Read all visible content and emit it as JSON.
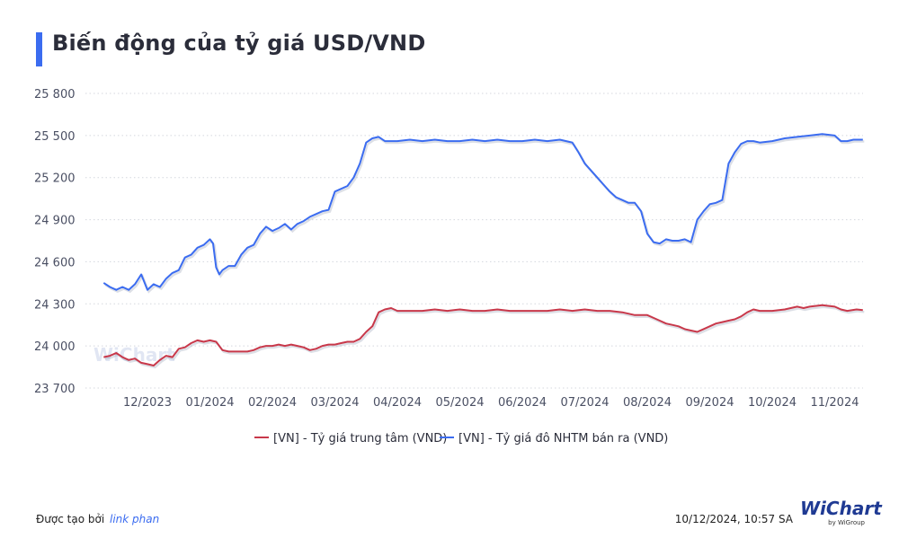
{
  "title": "Biến động của tỷ giá USD/VND",
  "footer": {
    "created_by": "Được tạo bởi",
    "author_link": "link phan",
    "timestamp": "10/12/2024, 10:57 SA",
    "brand": "WiChart",
    "brand_sub": "by WiGroup",
    "watermark": "WiChart"
  },
  "colors": {
    "accent": "#3b6cf0",
    "central": "#c8384a",
    "bank": "#3b6cf0"
  },
  "chart_data": {
    "type": "line",
    "title": "Biến động của tỷ giá USD/VND",
    "xlabel": "",
    "ylabel": "",
    "ylim": [
      23700,
      25800
    ],
    "yticks": [
      23700,
      24000,
      24300,
      24600,
      24900,
      25200,
      25500,
      25800
    ],
    "ytick_labels": [
      "23 700",
      "24 000",
      "24 300",
      "24 600",
      "24 900",
      "25 200",
      "25 500",
      "25 800"
    ],
    "x_categories": [
      "12/2023",
      "01/2024",
      "02/2024",
      "03/2024",
      "04/2024",
      "05/2024",
      "06/2024",
      "07/2024",
      "08/2024",
      "09/2024",
      "10/2024",
      "11/2024"
    ],
    "grid": "horizontal dotted",
    "legend_position": "bottom-center",
    "series": [
      {
        "name": "[VN] - Tỷ giá trung tâm (VND)",
        "color": "#c8384a",
        "points": [
          [
            -0.7,
            23920
          ],
          [
            -0.6,
            23930
          ],
          [
            -0.5,
            23950
          ],
          [
            -0.4,
            23920
          ],
          [
            -0.3,
            23900
          ],
          [
            -0.2,
            23910
          ],
          [
            -0.1,
            23880
          ],
          [
            0.0,
            23870
          ],
          [
            0.1,
            23860
          ],
          [
            0.2,
            23900
          ],
          [
            0.3,
            23930
          ],
          [
            0.4,
            23920
          ],
          [
            0.5,
            23980
          ],
          [
            0.6,
            23990
          ],
          [
            0.7,
            24020
          ],
          [
            0.8,
            24040
          ],
          [
            0.9,
            24030
          ],
          [
            1.0,
            24040
          ],
          [
            1.1,
            24030
          ],
          [
            1.2,
            23970
          ],
          [
            1.3,
            23960
          ],
          [
            1.4,
            23960
          ],
          [
            1.5,
            23960
          ],
          [
            1.6,
            23960
          ],
          [
            1.7,
            23970
          ],
          [
            1.8,
            23990
          ],
          [
            1.9,
            24000
          ],
          [
            2.0,
            24000
          ],
          [
            2.1,
            24010
          ],
          [
            2.2,
            24000
          ],
          [
            2.3,
            24010
          ],
          [
            2.4,
            24000
          ],
          [
            2.5,
            23990
          ],
          [
            2.6,
            23970
          ],
          [
            2.7,
            23980
          ],
          [
            2.8,
            24000
          ],
          [
            2.9,
            24010
          ],
          [
            3.0,
            24010
          ],
          [
            3.1,
            24020
          ],
          [
            3.2,
            24030
          ],
          [
            3.3,
            24030
          ],
          [
            3.4,
            24050
          ],
          [
            3.5,
            24100
          ],
          [
            3.6,
            24140
          ],
          [
            3.7,
            24240
          ],
          [
            3.8,
            24260
          ],
          [
            3.9,
            24270
          ],
          [
            4.0,
            24250
          ],
          [
            4.2,
            24250
          ],
          [
            4.4,
            24250
          ],
          [
            4.6,
            24260
          ],
          [
            4.8,
            24250
          ],
          [
            5.0,
            24260
          ],
          [
            5.2,
            24250
          ],
          [
            5.4,
            24250
          ],
          [
            5.6,
            24260
          ],
          [
            5.8,
            24250
          ],
          [
            6.0,
            24250
          ],
          [
            6.2,
            24250
          ],
          [
            6.4,
            24250
          ],
          [
            6.6,
            24260
          ],
          [
            6.8,
            24250
          ],
          [
            7.0,
            24260
          ],
          [
            7.2,
            24250
          ],
          [
            7.4,
            24250
          ],
          [
            7.6,
            24240
          ],
          [
            7.8,
            24220
          ],
          [
            8.0,
            24220
          ],
          [
            8.1,
            24200
          ],
          [
            8.2,
            24180
          ],
          [
            8.3,
            24160
          ],
          [
            8.4,
            24150
          ],
          [
            8.5,
            24140
          ],
          [
            8.6,
            24120
          ],
          [
            8.7,
            24110
          ],
          [
            8.8,
            24100
          ],
          [
            8.9,
            24120
          ],
          [
            9.0,
            24140
          ],
          [
            9.1,
            24160
          ],
          [
            9.2,
            24170
          ],
          [
            9.3,
            24180
          ],
          [
            9.4,
            24190
          ],
          [
            9.5,
            24210
          ],
          [
            9.6,
            24240
          ],
          [
            9.7,
            24260
          ],
          [
            9.8,
            24250
          ],
          [
            9.9,
            24250
          ],
          [
            10.0,
            24250
          ],
          [
            10.2,
            24260
          ],
          [
            10.4,
            24280
          ],
          [
            10.5,
            24270
          ],
          [
            10.6,
            24280
          ],
          [
            10.8,
            24290
          ],
          [
            11.0,
            24280
          ],
          [
            11.1,
            24260
          ],
          [
            11.2,
            24250
          ],
          [
            11.35,
            24260
          ],
          [
            11.45,
            24255
          ]
        ]
      },
      {
        "name": "[VN] - Tỷ giá đô NHTM bán ra (VND)",
        "color": "#3b6cf0",
        "points": [
          [
            -0.7,
            24450
          ],
          [
            -0.6,
            24420
          ],
          [
            -0.5,
            24400
          ],
          [
            -0.4,
            24420
          ],
          [
            -0.3,
            24400
          ],
          [
            -0.2,
            24440
          ],
          [
            -0.1,
            24510
          ],
          [
            0.0,
            24400
          ],
          [
            0.1,
            24440
          ],
          [
            0.2,
            24420
          ],
          [
            0.3,
            24480
          ],
          [
            0.4,
            24520
          ],
          [
            0.5,
            24540
          ],
          [
            0.6,
            24630
          ],
          [
            0.7,
            24650
          ],
          [
            0.8,
            24700
          ],
          [
            0.9,
            24720
          ],
          [
            1.0,
            24760
          ],
          [
            1.05,
            24730
          ],
          [
            1.1,
            24560
          ],
          [
            1.15,
            24510
          ],
          [
            1.2,
            24540
          ],
          [
            1.3,
            24570
          ],
          [
            1.4,
            24570
          ],
          [
            1.5,
            24650
          ],
          [
            1.6,
            24700
          ],
          [
            1.7,
            24720
          ],
          [
            1.8,
            24800
          ],
          [
            1.9,
            24850
          ],
          [
            2.0,
            24820
          ],
          [
            2.1,
            24840
          ],
          [
            2.2,
            24870
          ],
          [
            2.3,
            24830
          ],
          [
            2.4,
            24870
          ],
          [
            2.5,
            24890
          ],
          [
            2.6,
            24920
          ],
          [
            2.7,
            24940
          ],
          [
            2.8,
            24960
          ],
          [
            2.9,
            24970
          ],
          [
            3.0,
            25100
          ],
          [
            3.1,
            25120
          ],
          [
            3.2,
            25140
          ],
          [
            3.3,
            25200
          ],
          [
            3.4,
            25300
          ],
          [
            3.5,
            25450
          ],
          [
            3.6,
            25480
          ],
          [
            3.7,
            25490
          ],
          [
            3.8,
            25460
          ],
          [
            4.0,
            25460
          ],
          [
            4.2,
            25470
          ],
          [
            4.4,
            25460
          ],
          [
            4.6,
            25470
          ],
          [
            4.8,
            25460
          ],
          [
            5.0,
            25460
          ],
          [
            5.2,
            25470
          ],
          [
            5.4,
            25460
          ],
          [
            5.6,
            25470
          ],
          [
            5.8,
            25460
          ],
          [
            6.0,
            25460
          ],
          [
            6.2,
            25470
          ],
          [
            6.4,
            25460
          ],
          [
            6.6,
            25470
          ],
          [
            6.8,
            25450
          ],
          [
            6.9,
            25380
          ],
          [
            7.0,
            25300
          ],
          [
            7.1,
            25250
          ],
          [
            7.2,
            25200
          ],
          [
            7.3,
            25150
          ],
          [
            7.4,
            25100
          ],
          [
            7.5,
            25060
          ],
          [
            7.6,
            25040
          ],
          [
            7.7,
            25020
          ],
          [
            7.8,
            25020
          ],
          [
            7.9,
            24960
          ],
          [
            8.0,
            24800
          ],
          [
            8.05,
            24770
          ],
          [
            8.1,
            24740
          ],
          [
            8.2,
            24730
          ],
          [
            8.3,
            24760
          ],
          [
            8.4,
            24750
          ],
          [
            8.5,
            24750
          ],
          [
            8.6,
            24760
          ],
          [
            8.7,
            24740
          ],
          [
            8.8,
            24900
          ],
          [
            8.9,
            24960
          ],
          [
            9.0,
            25010
          ],
          [
            9.1,
            25020
          ],
          [
            9.2,
            25040
          ],
          [
            9.3,
            25300
          ],
          [
            9.4,
            25380
          ],
          [
            9.5,
            25440
          ],
          [
            9.6,
            25460
          ],
          [
            9.7,
            25460
          ],
          [
            9.8,
            25450
          ],
          [
            10.0,
            25460
          ],
          [
            10.2,
            25480
          ],
          [
            10.4,
            25490
          ],
          [
            10.6,
            25500
          ],
          [
            10.8,
            25510
          ],
          [
            11.0,
            25500
          ],
          [
            11.1,
            25460
          ],
          [
            11.2,
            25460
          ],
          [
            11.3,
            25470
          ],
          [
            11.45,
            25470
          ]
        ]
      }
    ]
  }
}
